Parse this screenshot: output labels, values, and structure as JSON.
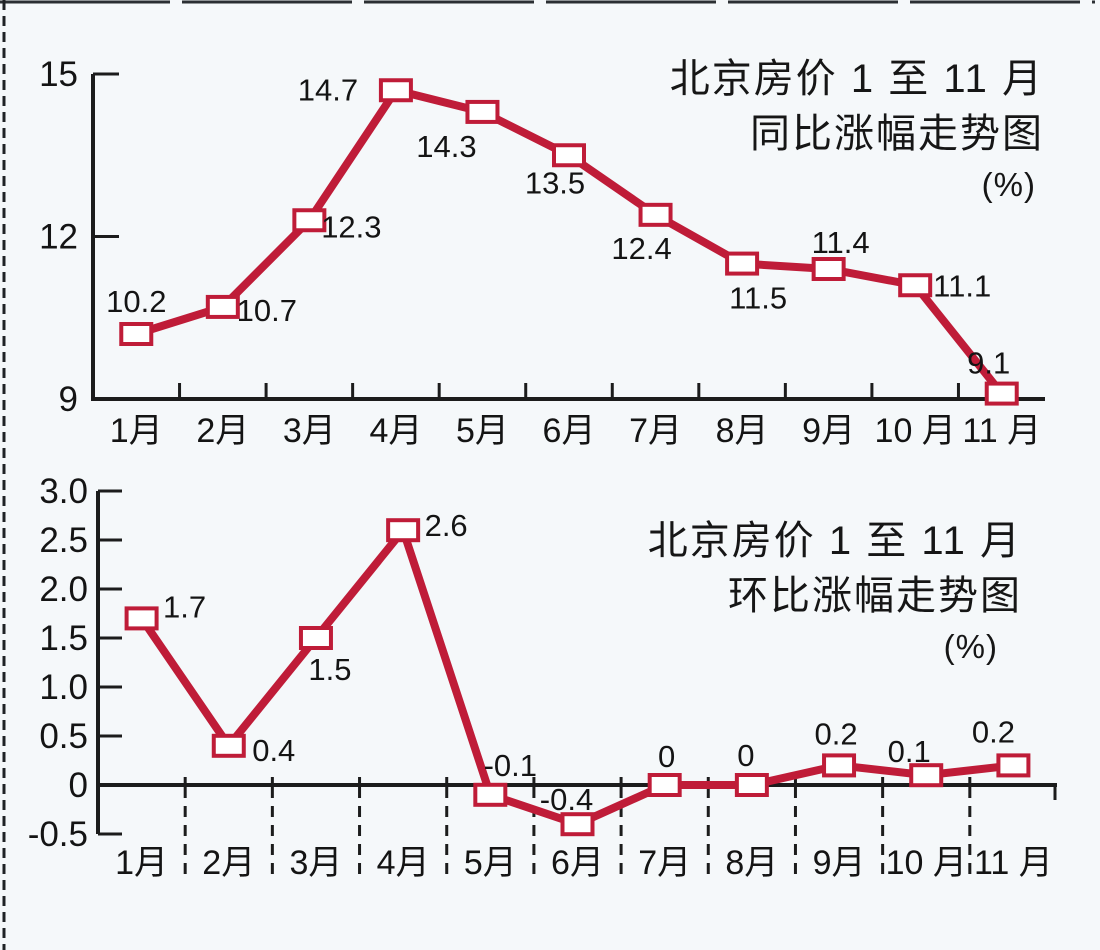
{
  "page": {
    "background": "#f5f8fa",
    "accent_red": "#bf1c38",
    "axis_color": "#1c1c1c",
    "text_color": "#141414"
  },
  "chart_data": [
    {
      "type": "line",
      "title_line1": "北京房价 1 至 11 月",
      "title_line2": "同比涨幅走势图",
      "unit": "(%)",
      "categories": [
        "1月",
        "2月",
        "3月",
        "4月",
        "5月",
        "6月",
        "7月",
        "8月",
        "9月",
        "10 月",
        "11 月"
      ],
      "values": [
        10.2,
        10.7,
        12.3,
        14.7,
        14.3,
        13.5,
        12.4,
        11.5,
        11.4,
        11.1,
        9.1
      ],
      "data_labels": [
        "10.2",
        "10.7",
        "12.3",
        "14.7",
        "14.3",
        "13.5",
        "12.4",
        "11.5",
        "11.4",
        "11.1",
        "9.1"
      ],
      "ylim": [
        9,
        15
      ],
      "ytick_values": [
        15,
        12,
        9
      ],
      "ytick_labels": [
        "15",
        "12",
        "9"
      ],
      "xlabel": "",
      "ylabel": "",
      "grid": "off",
      "legend": "none",
      "marker": "open-square"
    },
    {
      "type": "line",
      "title_line1": "北京房价 1 至 11 月",
      "title_line2": "环比涨幅走势图",
      "unit": "(%)",
      "categories": [
        "1月",
        "2月",
        "3月",
        "4月",
        "5月",
        "6月",
        "7月",
        "8月",
        "9月",
        "10 月",
        "11 月"
      ],
      "values": [
        1.7,
        0.4,
        1.5,
        2.6,
        -0.1,
        -0.4,
        0,
        0,
        0.2,
        0.1,
        0.2
      ],
      "data_labels": [
        "1.7",
        "0.4",
        "1.5",
        "2.6",
        "-0.1",
        "-0.4",
        "0",
        "0",
        "0.2",
        "0.1",
        "0.2"
      ],
      "ylim": [
        -0.5,
        3.0
      ],
      "ytick_values": [
        3.0,
        2.5,
        2.0,
        1.5,
        1.0,
        0.5,
        0,
        -0.5
      ],
      "ytick_labels": [
        "3.0",
        "2.5",
        "2.0",
        "1.5",
        "1.0",
        "0.5",
        "0",
        "-0.5"
      ],
      "xlabel": "",
      "ylabel": "",
      "grid": "dashed-vertical-below-zero",
      "legend": "none",
      "marker": "open-square"
    }
  ]
}
